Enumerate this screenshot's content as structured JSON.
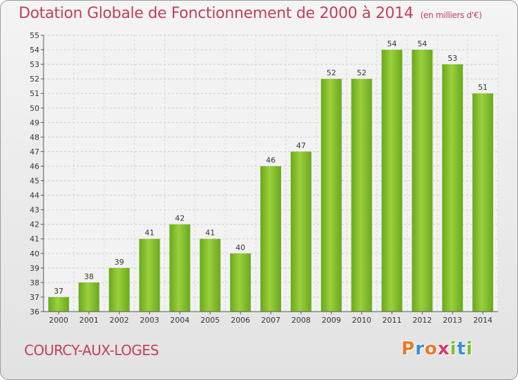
{
  "chart_data": {
    "type": "bar",
    "title": "Dotation Globale de Fonctionnement de 2000 à 2014",
    "subtitle": "(en milliers d'€)",
    "categories": [
      "2000",
      "2001",
      "2002",
      "2003",
      "2004",
      "2005",
      "2006",
      "2007",
      "2008",
      "2009",
      "2010",
      "2011",
      "2012",
      "2013",
      "2014"
    ],
    "values": [
      37,
      38,
      39,
      41,
      42,
      41,
      40,
      46,
      47,
      52,
      52,
      54,
      54,
      53,
      51
    ],
    "ylim": [
      36,
      55
    ],
    "yticks": [
      36,
      37,
      38,
      39,
      40,
      41,
      42,
      43,
      44,
      45,
      46,
      47,
      48,
      49,
      50,
      51,
      52,
      53,
      54,
      55
    ],
    "grid": true,
    "bar_color": "#7dbf2a"
  },
  "footer": {
    "commune": "COURCY-AUX-LOGES",
    "logo_letters": [
      "P",
      "r",
      "o",
      "x",
      "i",
      "t",
      "i"
    ],
    "logo_colors": [
      "#e8792b",
      "#3a8fd1",
      "#e8792b",
      "#d63a6a",
      "#7dbf2a",
      "#3a8fd1",
      "#7dbf2a"
    ]
  }
}
